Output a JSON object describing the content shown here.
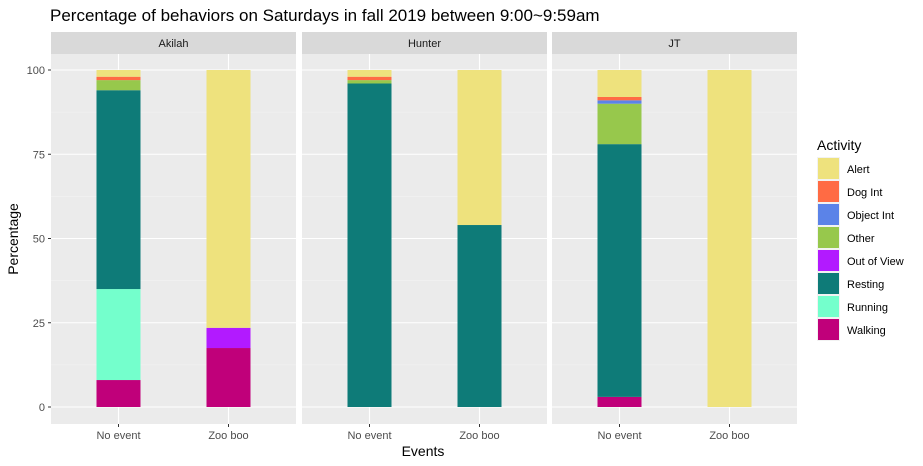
{
  "chart_data": {
    "type": "bar",
    "stacked": true,
    "title": "Percentage of behaviors on Saturdays in fall 2019 between 9:00~9:59am",
    "xlabel": "Events",
    "ylabel": "Percentage",
    "ylim": [
      0,
      100
    ],
    "yticks": [
      0,
      25,
      50,
      75,
      100
    ],
    "grid": true,
    "legend": {
      "title": "Activity",
      "placement": "right",
      "entries": [
        {
          "name": "Alert",
          "color": "#EEE27D"
        },
        {
          "name": "Dog Int",
          "color": "#FF6B44"
        },
        {
          "name": "Object Int",
          "color": "#5B83E8"
        },
        {
          "name": "Other",
          "color": "#97C84C"
        },
        {
          "name": "Out of View",
          "color": "#B21AFF"
        },
        {
          "name": "Resting",
          "color": "#0E7B78"
        },
        {
          "name": "Running",
          "color": "#74FFCC"
        },
        {
          "name": "Walking",
          "color": "#C0007A"
        }
      ]
    },
    "categories": [
      "No event",
      "Zoo boo"
    ],
    "panels": [
      {
        "name": "Akilah",
        "bars": [
          {
            "category": "No event",
            "values": {
              "Walking": 8,
              "Running": 27,
              "Out of View": 0,
              "Resting": 59,
              "Other": 3,
              "Object Int": 0,
              "Dog Int": 1,
              "Alert": 2
            }
          },
          {
            "category": "Zoo boo",
            "values": {
              "Walking": 17.5,
              "Running": 0,
              "Out of View": 6,
              "Resting": 0,
              "Other": 0,
              "Object Int": 0,
              "Dog Int": 0,
              "Alert": 76.5
            }
          }
        ]
      },
      {
        "name": "Hunter",
        "bars": [
          {
            "category": "No event",
            "values": {
              "Walking": 0,
              "Running": 0,
              "Out of View": 0,
              "Resting": 96,
              "Other": 1,
              "Object Int": 0,
              "Dog Int": 1,
              "Alert": 2
            }
          },
          {
            "category": "Zoo boo",
            "values": {
              "Walking": 0,
              "Running": 0,
              "Out of View": 0,
              "Resting": 54,
              "Other": 0,
              "Object Int": 0,
              "Dog Int": 0,
              "Alert": 46
            }
          }
        ]
      },
      {
        "name": "JT",
        "bars": [
          {
            "category": "No event",
            "values": {
              "Walking": 3,
              "Running": 0,
              "Out of View": 0,
              "Resting": 75,
              "Other": 12,
              "Object Int": 1,
              "Dog Int": 1,
              "Alert": 8
            }
          },
          {
            "category": "Zoo boo",
            "values": {
              "Walking": 0,
              "Running": 0,
              "Out of View": 0,
              "Resting": 0,
              "Other": 0,
              "Object Int": 0,
              "Dog Int": 0,
              "Alert": 100
            }
          }
        ]
      }
    ],
    "stack_order_bottom_to_top": [
      "Walking",
      "Running",
      "Out of View",
      "Resting",
      "Other",
      "Object Int",
      "Dog Int",
      "Alert"
    ]
  }
}
